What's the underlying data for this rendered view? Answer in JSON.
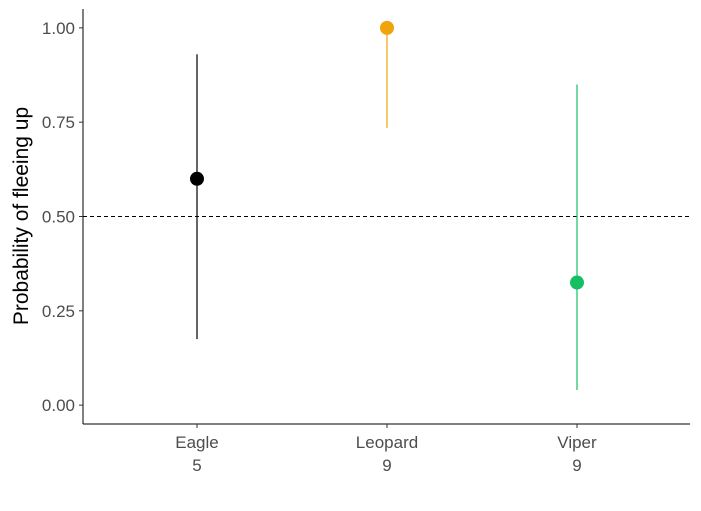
{
  "chart_data": {
    "type": "scatter",
    "title": "",
    "xlabel": "",
    "ylabel": "Probability of fleeing up",
    "ylim": [
      -0.05,
      1.05
    ],
    "yticks": [
      0.0,
      0.25,
      0.5,
      0.75,
      1.0
    ],
    "ytick_labels": [
      "0.00",
      "0.25",
      "0.50",
      "0.75",
      "1.00"
    ],
    "reference_line": {
      "y": 0.5,
      "style": "dashed",
      "color": "#000000"
    },
    "grid": false,
    "legend": "none",
    "categories": [
      {
        "name": "Eagle",
        "n": "5",
        "y": 0.6,
        "lower": 0.175,
        "upper": 0.93,
        "color": "#000000"
      },
      {
        "name": "Leopard",
        "n": "9",
        "y": 1.0,
        "lower": 0.735,
        "upper": 1.0,
        "color": "#f0a30a"
      },
      {
        "name": "Viper",
        "n": "9",
        "y": 0.325,
        "lower": 0.04,
        "upper": 0.85,
        "color": "#17bf63"
      }
    ]
  }
}
